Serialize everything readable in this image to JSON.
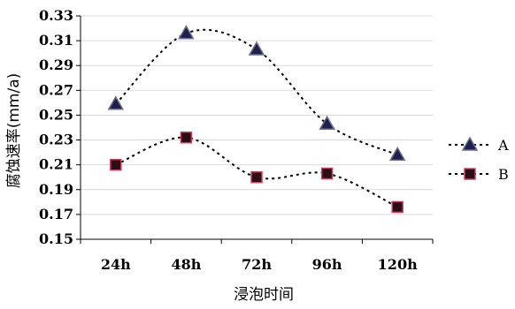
{
  "chart_data": {
    "type": "line",
    "title": "",
    "xlabel": "浸泡时间",
    "ylabel": "腐蚀速率(mm/a)",
    "categories": [
      "24h",
      "48h",
      "72h",
      "96h",
      "120h"
    ],
    "ylim": [
      0.15,
      0.33
    ],
    "yticks": [
      "0.15",
      "0.17",
      "0.19",
      "0.21",
      "0.23",
      "0.25",
      "0.27",
      "0.29",
      "0.31",
      "0.33"
    ],
    "grid": true,
    "legend_position": "right",
    "series": [
      {
        "name": "A",
        "marker": "triangle",
        "line_style": "dotted-smooth",
        "color": "#1c2150",
        "values": [
          0.259,
          0.316,
          0.303,
          0.243,
          0.218
        ]
      },
      {
        "name": "B",
        "marker": "square",
        "line_style": "dotted-smooth",
        "color": "#2a0f14",
        "values": [
          0.21,
          0.232,
          0.2,
          0.203,
          0.176
        ]
      }
    ]
  }
}
